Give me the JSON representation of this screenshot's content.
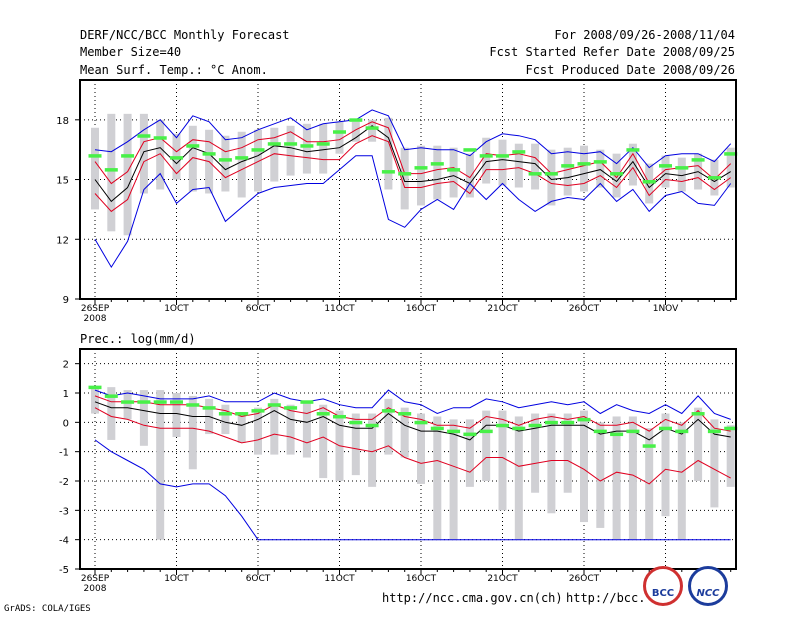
{
  "header": {
    "title": "DERF/NCC/BCC Monthly Forecast",
    "member_size": "Member Size=40",
    "variable": "Mean Surf. Temp.: °C Anom.",
    "period": "For 2008/09/26-2008/11/04",
    "started": "Fcst Started Refer Date 2008/09/25",
    "produced": "Fcst Produced Date 2008/09/26"
  },
  "footer": {
    "url1": "http://ncc.cma.gov.cn(ch)",
    "url2": "http://bcc.",
    "grads": "GrADS: COLA/IGES",
    "logo_left": "BCC",
    "logo_right": "NCC"
  },
  "colors": {
    "box": "#d0d0d4",
    "mean": "#48f048",
    "center": "#000000",
    "inner": "#e00020",
    "outer": "#0000e0",
    "grid": "#000000"
  },
  "chart_data": [
    {
      "type": "line",
      "title": "Mean Surf. Temp.: °C Anom.",
      "ylim": [
        9,
        20
      ],
      "yticks": [
        9,
        12,
        15,
        18
      ],
      "x": [
        "26SEP",
        "27SEP",
        "28SEP",
        "29SEP",
        "30SEP",
        "1OCT",
        "2OCT",
        "3OCT",
        "4OCT",
        "5OCT",
        "6OCT",
        "7OCT",
        "8OCT",
        "9OCT",
        "10OCT",
        "11OCT",
        "12OCT",
        "13OCT",
        "14OCT",
        "15OCT",
        "16OCT",
        "17OCT",
        "18OCT",
        "19OCT",
        "20OCT",
        "21OCT",
        "22OCT",
        "23OCT",
        "24OCT",
        "25OCT",
        "26OCT",
        "27OCT",
        "28OCT",
        "29OCT",
        "30OCT",
        "31OCT",
        "1NOV",
        "2NOV",
        "3NOV",
        "4NOV"
      ],
      "xtick_labels": [
        {
          "label": "26SEP",
          "sub": "2008",
          "index": 0
        },
        {
          "label": "1OCT",
          "index": 5
        },
        {
          "label": "6OCT",
          "index": 10
        },
        {
          "label": "11OCT",
          "index": 15
        },
        {
          "label": "16OCT",
          "index": 20
        },
        {
          "label": "21OCT",
          "index": 25
        },
        {
          "label": "26OCT",
          "index": 30
        },
        {
          "label": "1NOV",
          "index": 35
        }
      ],
      "series": [
        {
          "name": "max",
          "role": "outer",
          "values": [
            16.5,
            16.4,
            16.9,
            17.5,
            18.0,
            17.1,
            18.2,
            17.9,
            17.0,
            17.1,
            17.5,
            17.8,
            18.1,
            17.5,
            17.8,
            17.9,
            18.0,
            18.5,
            18.2,
            16.5,
            16.6,
            16.5,
            16.5,
            16.2,
            16.9,
            17.3,
            17.2,
            17.0,
            16.3,
            16.4,
            16.3,
            16.4,
            15.8,
            16.6,
            15.6,
            16.2,
            16.3,
            16.3,
            15.9,
            16.8
          ]
        },
        {
          "name": "upper",
          "role": "inner",
          "values": [
            15.9,
            14.8,
            15.4,
            16.9,
            17.1,
            16.4,
            17.0,
            16.9,
            16.4,
            16.6,
            17.0,
            17.1,
            17.4,
            16.9,
            16.9,
            17.0,
            17.5,
            17.9,
            17.6,
            15.3,
            15.3,
            15.5,
            15.6,
            15.1,
            16.3,
            16.2,
            16.3,
            16.1,
            15.3,
            15.5,
            15.7,
            15.9,
            15.1,
            16.3,
            14.8,
            15.5,
            15.6,
            15.7,
            15.0,
            15.8
          ]
        },
        {
          "name": "median",
          "role": "center",
          "values": [
            15.0,
            13.9,
            14.6,
            16.4,
            16.6,
            15.8,
            16.6,
            16.3,
            15.5,
            15.9,
            16.2,
            16.7,
            16.6,
            16.4,
            16.5,
            16.6,
            17.1,
            17.7,
            17.1,
            14.9,
            14.9,
            15.0,
            15.2,
            14.8,
            15.9,
            16.0,
            15.9,
            15.8,
            15.0,
            15.1,
            15.3,
            15.5,
            14.9,
            15.9,
            14.6,
            15.3,
            15.2,
            15.4,
            14.9,
            15.4
          ]
        },
        {
          "name": "lower",
          "role": "inner",
          "values": [
            14.3,
            13.4,
            14.0,
            15.9,
            16.3,
            15.3,
            16.1,
            15.9,
            15.1,
            15.5,
            15.9,
            16.3,
            16.2,
            16.1,
            16.0,
            16.0,
            16.8,
            17.2,
            16.9,
            14.6,
            14.6,
            14.8,
            14.9,
            14.3,
            15.5,
            15.5,
            15.6,
            15.3,
            14.8,
            14.7,
            14.8,
            15.2,
            14.6,
            15.6,
            14.2,
            15.0,
            14.9,
            15.1,
            14.5,
            15.1
          ]
        },
        {
          "name": "min",
          "role": "outer",
          "values": [
            12.0,
            10.6,
            11.9,
            14.5,
            15.3,
            13.8,
            14.5,
            14.6,
            12.9,
            13.6,
            14.3,
            14.6,
            14.7,
            14.8,
            14.8,
            15.5,
            16.2,
            16.2,
            13.0,
            12.6,
            13.5,
            14.0,
            13.5,
            14.8,
            14.0,
            14.8,
            14.0,
            13.4,
            13.9,
            14.1,
            14.0,
            14.8,
            13.9,
            14.5,
            13.4,
            14.2,
            14.4,
            13.8,
            13.7,
            14.8
          ]
        },
        {
          "name": "ensemble_mean",
          "role": "mean",
          "values": [
            16.2,
            15.5,
            16.2,
            17.2,
            17.1,
            16.1,
            16.7,
            16.3,
            16.0,
            16.1,
            16.5,
            16.8,
            16.8,
            16.7,
            16.8,
            17.4,
            18.0,
            17.6,
            15.4,
            15.3,
            15.6,
            15.8,
            15.5,
            16.5,
            16.2,
            16.2,
            16.4,
            15.3,
            15.3,
            15.7,
            15.8,
            15.9,
            15.3,
            16.5,
            14.9,
            15.7,
            15.6,
            16.0,
            15.1,
            16.3
          ]
        },
        {
          "name": "box_top",
          "role": "box",
          "values": [
            17.6,
            18.3,
            18.3,
            18.3,
            18.0,
            17.3,
            17.7,
            17.5,
            17.2,
            17.4,
            17.5,
            17.6,
            17.7,
            17.8,
            17.8,
            17.9,
            17.9,
            18.0,
            18.1,
            16.6,
            16.7,
            16.7,
            16.6,
            16.3,
            17.1,
            17.0,
            16.8,
            16.8,
            16.5,
            16.6,
            16.7,
            16.5,
            16.3,
            16.8,
            15.8,
            16.2,
            16.1,
            16.3,
            16.0,
            16.6
          ]
        },
        {
          "name": "box_bottom",
          "role": "box",
          "values": [
            13.5,
            12.4,
            12.2,
            14.3,
            14.5,
            15.0,
            14.4,
            14.3,
            14.4,
            14.1,
            14.4,
            14.9,
            15.2,
            15.3,
            15.3,
            16.3,
            16.9,
            16.9,
            14.5,
            13.5,
            13.7,
            14.0,
            14.1,
            14.1,
            14.8,
            14.7,
            14.6,
            14.5,
            13.7,
            14.2,
            14.4,
            14.6,
            14.1,
            14.7,
            13.8,
            14.6,
            14.4,
            14.5,
            14.2,
            14.6
          ]
        }
      ]
    },
    {
      "type": "line",
      "title": "Prec.: log(mm/d)",
      "ylim": [
        -5,
        2.5
      ],
      "yticks": [
        -5,
        -4,
        -3,
        -2,
        -1,
        0,
        1,
        2
      ],
      "x": [
        "26SEP",
        "27SEP",
        "28SEP",
        "29SEP",
        "30SEP",
        "1OCT",
        "2OCT",
        "3OCT",
        "4OCT",
        "5OCT",
        "6OCT",
        "7OCT",
        "8OCT",
        "9OCT",
        "10OCT",
        "11OCT",
        "12OCT",
        "13OCT",
        "14OCT",
        "15OCT",
        "16OCT",
        "17OCT",
        "18OCT",
        "19OCT",
        "20OCT",
        "21OCT",
        "22OCT",
        "23OCT",
        "24OCT",
        "25OCT",
        "26OCT",
        "27OCT",
        "28OCT",
        "29OCT",
        "30OCT",
        "31OCT",
        "1NOV",
        "2NOV",
        "3NOV",
        "4NOV"
      ],
      "xtick_labels": [
        {
          "label": "26SEP",
          "sub": "2008",
          "index": 0
        },
        {
          "label": "1OCT",
          "index": 5
        },
        {
          "label": "6OCT",
          "index": 10
        },
        {
          "label": "11OCT",
          "index": 15
        },
        {
          "label": "16OCT",
          "index": 20
        },
        {
          "label": "21OCT",
          "index": 25
        },
        {
          "label": "26OCT",
          "index": 30
        },
        {
          "label": "1NOV",
          "index": 35
        }
      ],
      "series": [
        {
          "name": "max",
          "role": "outer",
          "values": [
            1.1,
            0.9,
            1.0,
            0.9,
            0.8,
            0.8,
            0.8,
            0.9,
            0.7,
            0.7,
            0.7,
            1.0,
            0.8,
            0.7,
            0.8,
            0.6,
            0.5,
            0.5,
            1.1,
            0.7,
            0.6,
            0.3,
            0.5,
            0.5,
            0.8,
            0.7,
            0.5,
            0.6,
            0.7,
            0.6,
            0.7,
            0.3,
            0.6,
            0.4,
            0.3,
            0.6,
            0.3,
            0.9,
            0.3,
            0.1
          ]
        },
        {
          "name": "upper",
          "role": "inner",
          "values": [
            0.9,
            0.7,
            0.7,
            0.7,
            0.6,
            0.6,
            0.6,
            0.5,
            0.4,
            0.2,
            0.3,
            0.6,
            0.4,
            0.3,
            0.5,
            0.2,
            0.1,
            0.1,
            0.5,
            0.2,
            0.1,
            -0.1,
            -0.1,
            -0.2,
            0.2,
            0.1,
            -0.1,
            0.1,
            0.2,
            0.1,
            0.2,
            -0.1,
            -0.1,
            0.0,
            -0.3,
            0.1,
            -0.1,
            0.4,
            -0.2,
            -0.3
          ]
        },
        {
          "name": "median",
          "role": "center",
          "values": [
            0.7,
            0.5,
            0.5,
            0.4,
            0.3,
            0.3,
            0.2,
            0.2,
            0.0,
            -0.1,
            0.1,
            0.4,
            0.1,
            0.0,
            0.2,
            -0.1,
            -0.2,
            -0.2,
            0.3,
            -0.1,
            -0.3,
            -0.3,
            -0.4,
            -0.6,
            -0.1,
            -0.1,
            -0.3,
            -0.2,
            -0.1,
            -0.1,
            -0.1,
            -0.4,
            -0.3,
            -0.3,
            -0.6,
            -0.2,
            -0.4,
            0.1,
            -0.4,
            -0.5
          ]
        },
        {
          "name": "lower",
          "role": "inner",
          "values": [
            0.5,
            0.2,
            0.1,
            -0.1,
            -0.2,
            -0.2,
            -0.2,
            -0.3,
            -0.5,
            -0.7,
            -0.6,
            -0.4,
            -0.5,
            -0.7,
            -0.5,
            -0.8,
            -0.9,
            -1.0,
            -0.8,
            -1.2,
            -1.4,
            -1.3,
            -1.5,
            -1.7,
            -1.2,
            -1.2,
            -1.5,
            -1.4,
            -1.3,
            -1.3,
            -1.6,
            -2.0,
            -1.7,
            -1.8,
            -2.1,
            -1.6,
            -1.7,
            -1.3,
            -1.6,
            -1.9
          ]
        },
        {
          "name": "min",
          "role": "outer",
          "values": [
            -0.6,
            -1.0,
            -1.3,
            -1.6,
            -2.1,
            -2.2,
            -2.1,
            -2.1,
            -2.5,
            -3.2,
            -4.0,
            -4.0,
            -4.0,
            -4.0,
            -4.0,
            -4.0,
            -4.0,
            -4.0,
            -4.0,
            -4.0,
            -4.0,
            -4.0,
            -4.0,
            -4.0,
            -4.0,
            -4.0,
            -4.0,
            -4.0,
            -4.0,
            -4.0,
            -4.0,
            -4.0,
            -4.0,
            -4.0,
            -4.0,
            -4.0,
            -4.0,
            -4.0,
            -4.0,
            -4.0
          ]
        },
        {
          "name": "ensemble_mean",
          "role": "mean",
          "values": [
            1.2,
            0.9,
            0.7,
            0.7,
            0.7,
            0.7,
            0.6,
            0.5,
            0.3,
            0.3,
            0.4,
            0.6,
            0.5,
            0.7,
            0.3,
            0.2,
            0.0,
            -0.1,
            0.4,
            0.3,
            0.0,
            -0.2,
            -0.3,
            -0.4,
            -0.3,
            -0.1,
            -0.2,
            -0.1,
            0.0,
            0.0,
            0.1,
            -0.3,
            -0.4,
            -0.3,
            -0.8,
            -0.2,
            -0.3,
            0.3,
            -0.3,
            -0.2
          ]
        },
        {
          "name": "box_top",
          "role": "box",
          "values": [
            1.2,
            1.2,
            1.1,
            1.1,
            1.1,
            1.0,
            0.9,
            0.8,
            0.6,
            0.3,
            0.5,
            0.8,
            0.6,
            0.7,
            0.6,
            0.4,
            0.3,
            0.3,
            0.8,
            0.5,
            0.3,
            0.2,
            0.1,
            0.1,
            0.4,
            0.4,
            0.2,
            0.3,
            0.3,
            0.3,
            0.4,
            0.0,
            0.2,
            0.2,
            -0.2,
            0.3,
            0.0,
            0.5,
            0.1,
            -0.1
          ]
        },
        {
          "name": "box_bottom",
          "role": "box",
          "values": [
            0.3,
            -0.6,
            0.1,
            -0.8,
            -4.0,
            -0.5,
            -1.6,
            -0.4,
            -0.4,
            -0.7,
            -1.1,
            -1.1,
            -1.1,
            -1.2,
            -1.9,
            -2.0,
            -1.8,
            -2.2,
            -1.1,
            -1.2,
            -2.1,
            -4.0,
            -4.0,
            -2.2,
            -2.0,
            -3.0,
            -4.0,
            -2.4,
            -3.1,
            -2.4,
            -3.4,
            -3.6,
            -4.0,
            -4.0,
            -4.0,
            -3.2,
            -4.0,
            -2.0,
            -2.9,
            -2.2
          ]
        }
      ]
    }
  ]
}
